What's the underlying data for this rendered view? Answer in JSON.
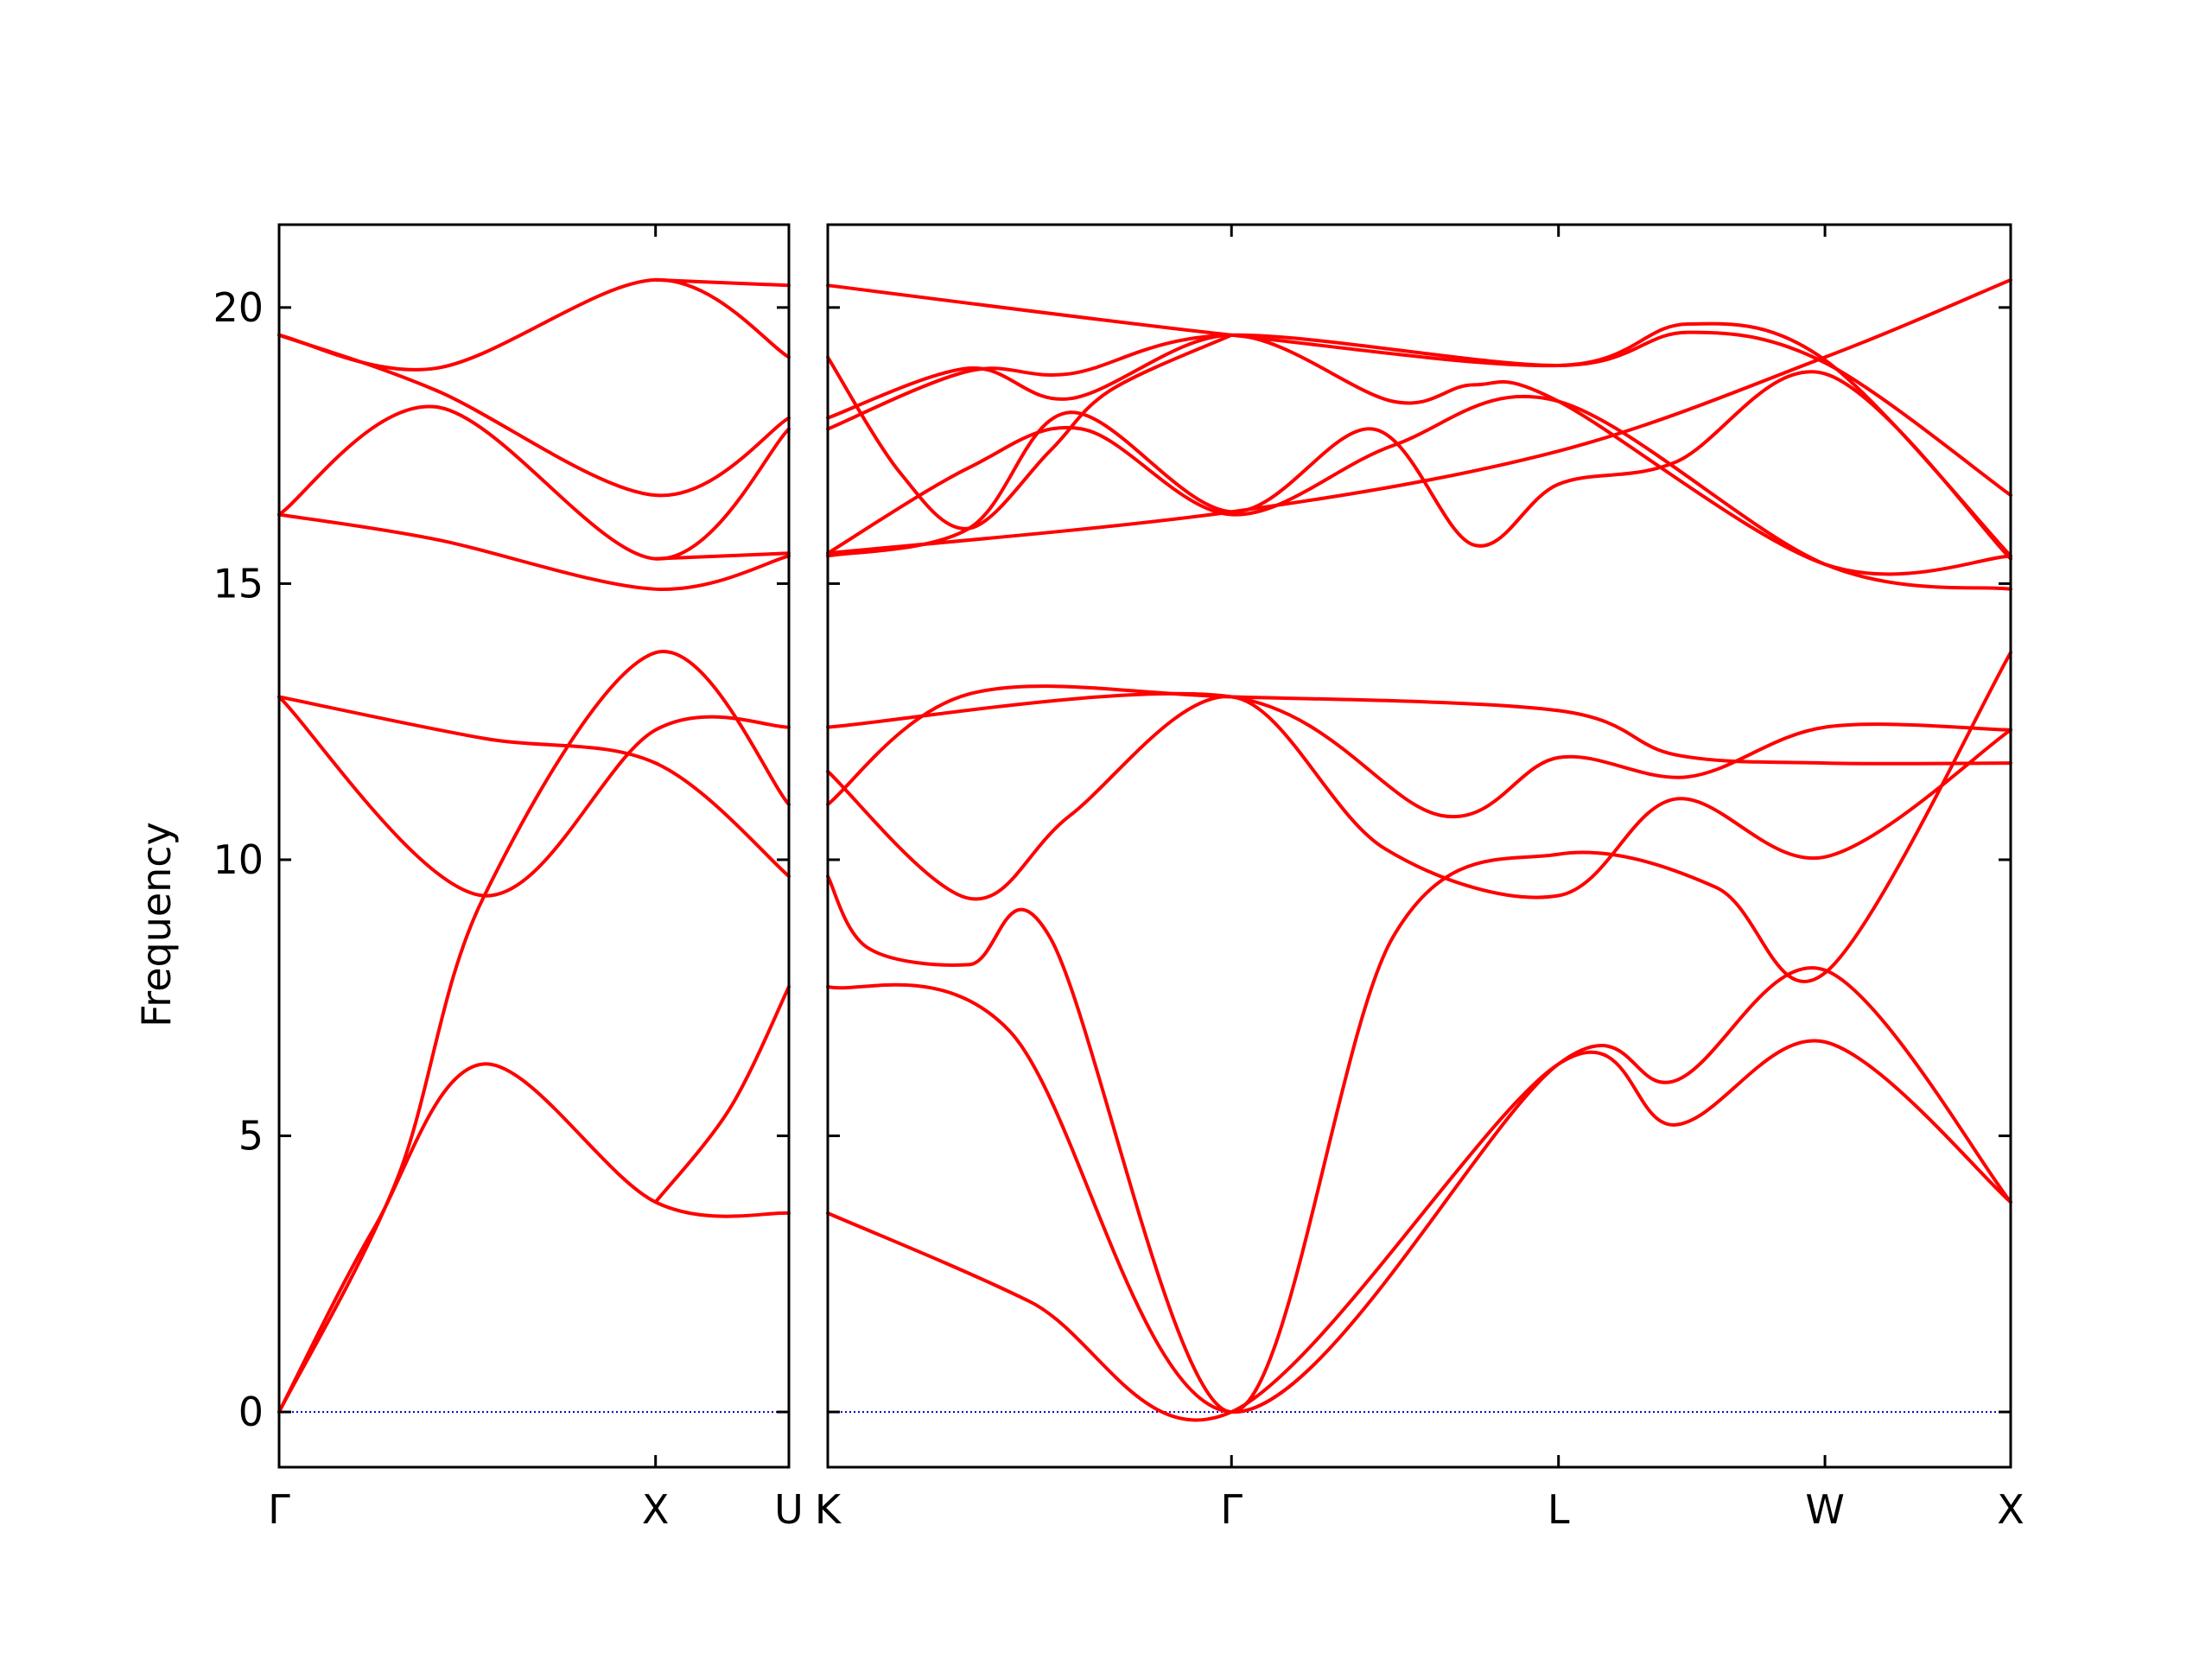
{
  "chart_data": {
    "type": "line",
    "title": "",
    "ylabel": "Frequency",
    "ylim": [
      -1,
      21.5
    ],
    "yticks": [
      0,
      5,
      10,
      15,
      20
    ],
    "grid": false,
    "legend": "none",
    "colors": {
      "band": "#ff0000",
      "zero_line": "#0000cc",
      "axes": "#000000"
    },
    "panels": [
      {
        "xlim": [
          0,
          1.3
        ],
        "xticks": [
          {
            "x": 0,
            "label": "Γ"
          },
          {
            "x": 0.96,
            "label": "X"
          },
          {
            "x": 1.3,
            "label": "U"
          }
        ],
        "series": [
          {
            "x": [
              0,
              0.24,
              0.52,
              0.96,
              1.3
            ],
            "y": [
              0,
              3.3,
              6.3,
              3.8,
              3.6
            ]
          },
          {
            "x": [
              0,
              0.3,
              0.52,
              0.96,
              1.3
            ],
            "y": [
              0,
              4.2,
              9.3,
              13.75,
              11.0
            ]
          },
          {
            "x": [
              0,
              0.52,
              0.96,
              1.3
            ],
            "y": [
              12.95,
              9.35,
              12.35,
              12.4
            ]
          },
          {
            "x": [
              0,
              0.52,
              0.96,
              1.3
            ],
            "y": [
              12.95,
              12.2,
              11.75,
              9.7
            ]
          },
          {
            "x": [
              0.96,
              1.15,
              1.3
            ],
            "y": [
              3.8,
              5.5,
              7.7
            ]
          },
          {
            "x": [
              0,
              0.4,
              0.96,
              1.3
            ],
            "y": [
              16.25,
              15.8,
              14.9,
              15.5
            ]
          },
          {
            "x": [
              0,
              0.4,
              0.96,
              1.3
            ],
            "y": [
              16.25,
              18.2,
              15.45,
              17.8
            ]
          },
          {
            "x": [
              0,
              0.4,
              0.96,
              1.3
            ],
            "y": [
              19.5,
              18.9,
              20.5,
              19.1
            ]
          },
          {
            "x": [
              0,
              0.4,
              0.96,
              1.3
            ],
            "y": [
              19.5,
              18.5,
              16.6,
              18.0
            ]
          },
          {
            "x": [
              0.96,
              1.3
            ],
            "y": [
              20.5,
              20.4
            ]
          },
          {
            "x": [
              0.96,
              1.3
            ],
            "y": [
              15.45,
              15.55
            ]
          }
        ]
      },
      {
        "xlim": [
          0,
          2.93
        ],
        "xticks": [
          {
            "x": 0,
            "label": "K"
          },
          {
            "x": 1.0,
            "label": "Γ"
          },
          {
            "x": 1.81,
            "label": "L"
          },
          {
            "x": 2.47,
            "label": "W"
          },
          {
            "x": 2.93,
            "label": "X"
          }
        ],
        "series": [
          {
            "x": [
              0,
              0.5,
              1.0,
              1.81,
              2.1,
              2.47,
              2.93
            ],
            "y": [
              3.6,
              2.0,
              0,
              6.3,
              5.2,
              6.7,
              3.8
            ]
          },
          {
            "x": [
              0,
              0.45,
              1.0,
              1.81,
              2.1,
              2.47,
              2.93
            ],
            "y": [
              7.7,
              6.9,
              0,
              6.3,
              6.0,
              8.0,
              3.8
            ]
          },
          {
            "x": [
              0,
              0.1,
              0.35,
              0.55,
              1.0,
              1.4,
              1.81,
              2.2,
              2.47,
              2.93
            ],
            "y": [
              9.7,
              8.4,
              8.1,
              8.6,
              0,
              8.6,
              10.1,
              9.5,
              7.95,
              13.75
            ]
          },
          {
            "x": [
              0,
              0.35,
              0.6,
              1.0,
              1.38,
              1.81,
              2.1,
              2.47,
              2.93
            ],
            "y": [
              11.6,
              9.3,
              10.8,
              12.95,
              10.2,
              9.35,
              11.1,
              10.05,
              12.35
            ]
          },
          {
            "x": [
              0,
              0.35,
              1.0,
              1.81,
              2.1,
              2.47,
              2.93
            ],
            "y": [
              11.0,
              13.0,
              12.95,
              12.7,
              11.9,
              11.75,
              11.75
            ]
          },
          {
            "x": [
              0,
              1.0,
              1.52,
              1.81,
              2.13,
              2.47,
              2.93
            ],
            "y": [
              12.4,
              12.95,
              10.8,
              11.85,
              11.5,
              12.4,
              12.35
            ]
          },
          {
            "x": [
              0,
              0.35,
              0.6,
              1.0,
              1.35,
              1.6,
              1.81,
              2.1,
              2.47,
              2.93
            ],
            "y": [
              15.5,
              16.0,
              18.1,
              16.3,
              17.8,
              15.7,
              16.8,
              17.2,
              18.8,
              15.45
            ]
          },
          {
            "x": [
              0,
              0.35,
              0.63,
              1.0,
              1.4,
              1.81,
              2.47,
              2.93
            ],
            "y": [
              15.55,
              17.1,
              17.8,
              16.25,
              17.5,
              18.3,
              15.35,
              14.9
            ]
          },
          {
            "x": [
              0,
              1.0,
              1.81,
              2.47,
              2.93
            ],
            "y": [
              15.55,
              16.3,
              17.4,
              19.1,
              20.5
            ]
          },
          {
            "x": [
              0,
              0.35,
              0.6,
              1.0,
              1.4,
              1.6,
              1.81,
              2.47,
              2.93
            ],
            "y": [
              18.0,
              18.9,
              18.35,
              19.5,
              18.3,
              18.6,
              18.3,
              15.35,
              15.5
            ]
          },
          {
            "x": [
              0,
              0.35,
              0.6,
              1.0,
              1.81,
              2.13,
              2.47,
              2.93
            ],
            "y": [
              17.8,
              18.85,
              18.8,
              19.5,
              18.95,
              19.55,
              19.0,
              16.6
            ]
          },
          {
            "x": [
              0,
              1.0,
              1.81,
              2.13,
              2.47,
              2.93
            ],
            "y": [
              20.4,
              19.5,
              18.95,
              19.7,
              19.05,
              15.5
            ]
          },
          {
            "x": [
              0,
              0.18,
              0.35,
              0.55,
              0.7,
              1.0
            ],
            "y": [
              19.1,
              17.0,
              16.0,
              17.4,
              18.5,
              19.5
            ]
          }
        ]
      }
    ]
  }
}
